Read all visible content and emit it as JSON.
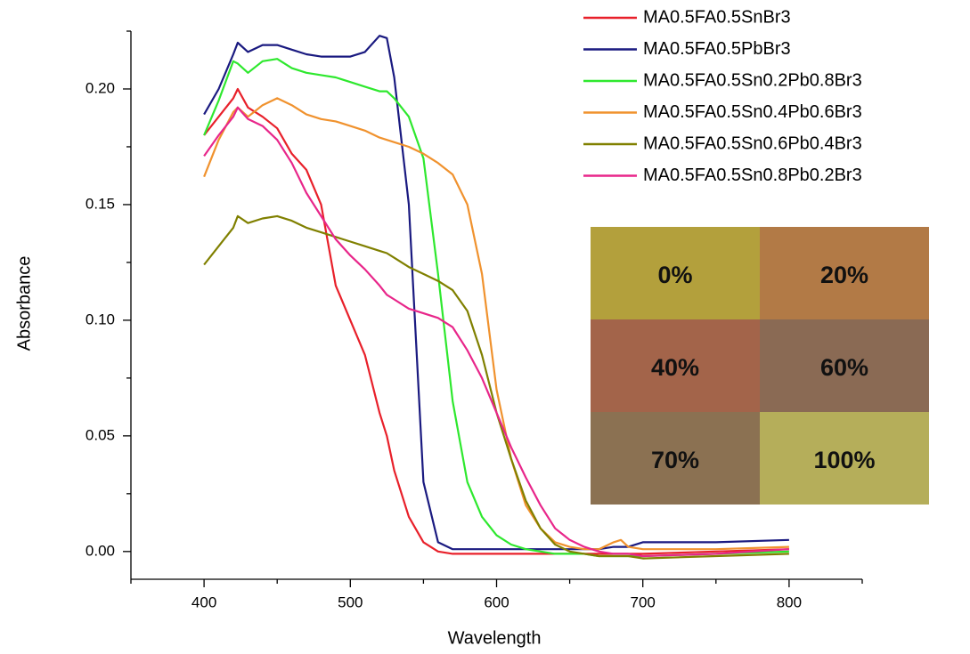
{
  "chart_data": {
    "type": "line",
    "x_label": "Wavelength",
    "y_label": "Absorbance",
    "xlim": [
      350,
      850
    ],
    "ylim": [
      -0.012,
      0.225
    ],
    "xticks": [
      400,
      500,
      600,
      700,
      800
    ],
    "xminorticks": [
      350,
      450,
      550,
      650,
      750,
      850
    ],
    "yticks": [
      {
        "value": 0,
        "label": "0.00"
      },
      {
        "value": 0.05,
        "label": "0.05"
      },
      {
        "value": 0.1,
        "label": "0.10"
      },
      {
        "value": 0.15,
        "label": "0.15"
      },
      {
        "value": 0.2,
        "label": "0.20"
      }
    ],
    "yminorticks": [
      0.025,
      0.075,
      0.125,
      0.175,
      0.225
    ],
    "grid": false,
    "legend": "upper right",
    "x": [
      400,
      410,
      420,
      423,
      430,
      440,
      450,
      460,
      470,
      480,
      490,
      500,
      510,
      520,
      525,
      530,
      540,
      550,
      560,
      570,
      580,
      590,
      600,
      610,
      620,
      630,
      640,
      650,
      660,
      670,
      680,
      685,
      690,
      700,
      750,
      800
    ],
    "series": [
      {
        "name": "MA0.5FA0.5SnBr3",
        "color": "#e8202a",
        "values": [
          0.18,
          0.188,
          0.196,
          0.2,
          0.192,
          0.188,
          0.183,
          0.172,
          0.165,
          0.15,
          0.115,
          0.1,
          0.085,
          0.06,
          0.05,
          0.035,
          0.015,
          0.004,
          0.0,
          -0.001,
          -0.001,
          -0.001,
          -0.001,
          -0.001,
          -0.001,
          -0.001,
          -0.001,
          -0.001,
          -0.001,
          -0.001,
          -0.001,
          -0.001,
          -0.001,
          -0.001,
          0.0,
          0.001
        ]
      },
      {
        "name": "MA0.5FA0.5PbBr3",
        "color": "#1a1a80",
        "values": [
          0.189,
          0.2,
          0.215,
          0.22,
          0.216,
          0.219,
          0.219,
          0.217,
          0.215,
          0.214,
          0.214,
          0.214,
          0.216,
          0.223,
          0.222,
          0.205,
          0.15,
          0.03,
          0.004,
          0.001,
          0.001,
          0.001,
          0.001,
          0.001,
          0.001,
          0.001,
          0.001,
          0.001,
          0.001,
          0.001,
          0.002,
          0.002,
          0.002,
          0.004,
          0.004,
          0.005
        ]
      },
      {
        "name": "MA0.5FA0.5Sn0.2Pb0.8Br3",
        "color": "#2ee82e",
        "values": [
          0.18,
          0.195,
          0.212,
          0.211,
          0.207,
          0.212,
          0.213,
          0.209,
          0.207,
          0.206,
          0.205,
          0.203,
          0.201,
          0.199,
          0.199,
          0.196,
          0.188,
          0.17,
          0.12,
          0.065,
          0.03,
          0.015,
          0.007,
          0.003,
          0.001,
          0.0,
          -0.001,
          -0.001,
          -0.001,
          -0.002,
          -0.002,
          -0.002,
          -0.002,
          -0.002,
          -0.001,
          0.0
        ]
      },
      {
        "name": "MA0.5FA0.5Sn0.4Pb0.6Br3",
        "color": "#f0922e",
        "values": [
          0.162,
          0.178,
          0.19,
          0.192,
          0.188,
          0.193,
          0.196,
          0.193,
          0.189,
          0.187,
          0.186,
          0.184,
          0.182,
          0.179,
          0.178,
          0.177,
          0.175,
          0.172,
          0.168,
          0.163,
          0.15,
          0.12,
          0.07,
          0.04,
          0.02,
          0.01,
          0.004,
          0.002,
          0.001,
          0.001,
          0.004,
          0.005,
          0.002,
          0.001,
          0.001,
          0.002
        ]
      },
      {
        "name": "MA0.5FA0.5Sn0.6Pb0.4Br3",
        "color": "#808000",
        "values": [
          0.124,
          0.132,
          0.14,
          0.145,
          0.142,
          0.144,
          0.145,
          0.143,
          0.14,
          0.138,
          0.136,
          0.134,
          0.132,
          0.13,
          0.129,
          0.127,
          0.123,
          0.12,
          0.117,
          0.113,
          0.104,
          0.085,
          0.06,
          0.04,
          0.022,
          0.01,
          0.003,
          0.0,
          -0.001,
          -0.002,
          -0.002,
          -0.002,
          -0.002,
          -0.003,
          -0.002,
          -0.001
        ]
      },
      {
        "name": "MA0.5FA0.5Sn0.8Pb0.2Br3",
        "color": "#e8268a",
        "values": [
          0.171,
          0.18,
          0.188,
          0.192,
          0.187,
          0.184,
          0.178,
          0.168,
          0.155,
          0.145,
          0.135,
          0.128,
          0.122,
          0.115,
          0.111,
          0.109,
          0.105,
          0.103,
          0.101,
          0.097,
          0.087,
          0.075,
          0.06,
          0.045,
          0.032,
          0.02,
          0.01,
          0.005,
          0.002,
          0.0,
          -0.001,
          -0.001,
          -0.001,
          -0.002,
          -0.001,
          0.001
        ]
      }
    ],
    "inset": [
      {
        "label": "0%",
        "color": "#b3a03c"
      },
      {
        "label": "20%",
        "color": "#b27a46"
      },
      {
        "label": "40%",
        "color": "#a3644a"
      },
      {
        "label": "60%",
        "color": "#8a6a54"
      },
      {
        "label": "70%",
        "color": "#8b7152"
      },
      {
        "label": "100%",
        "color": "#b5ae5a"
      }
    ]
  }
}
